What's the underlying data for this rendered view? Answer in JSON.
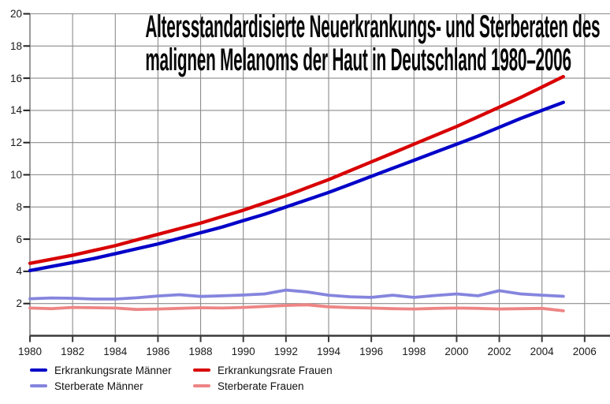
{
  "title": {
    "line1": "Altersstandardisierte Neuerkrankungs- und Sterberaten des",
    "line2": "malignen Melanoms der Haut in Deutschland 1980–2006"
  },
  "colors": {
    "grid": "#8c8c8c",
    "axis": "#3a3a3a",
    "tick": "#222222",
    "incidence_men": "#0000c8",
    "incidence_women": "#d80000",
    "mortality_men": "#8585de",
    "mortality_women": "#ee8585"
  },
  "chart_data": {
    "type": "line",
    "title": "Altersstandardisierte Neuerkrankungs- und Sterberaten des malignen Melanoms der Haut in Deutschland 1980–2006",
    "xlabel": "",
    "ylabel": "",
    "xlim": [
      1980,
      2007
    ],
    "ylim": [
      0,
      20
    ],
    "grid": true,
    "legend_position": "bottom-left",
    "xticks": [
      1980,
      1982,
      1984,
      1986,
      1988,
      1990,
      1992,
      1994,
      1996,
      1998,
      2000,
      2002,
      2004,
      2006
    ],
    "yticks": [
      2,
      4,
      6,
      8,
      10,
      12,
      14,
      16,
      18,
      20
    ],
    "x": [
      1980,
      1981,
      1982,
      1983,
      1984,
      1985,
      1986,
      1987,
      1988,
      1989,
      1990,
      1991,
      1992,
      1993,
      1994,
      1995,
      1996,
      1997,
      1998,
      1999,
      2000,
      2001,
      2002,
      2003,
      2004,
      2005
    ],
    "series": [
      {
        "name": "Erkrankungsrate Männer",
        "color": "#0000c8",
        "values": [
          4.05,
          4.3,
          4.55,
          4.8,
          5.1,
          5.4,
          5.7,
          6.05,
          6.4,
          6.75,
          7.15,
          7.55,
          8.0,
          8.45,
          8.9,
          9.4,
          9.9,
          10.4,
          10.9,
          11.4,
          11.9,
          12.4,
          12.95,
          13.5,
          14.0,
          14.5
        ]
      },
      {
        "name": "Erkrankungsrate Frauen",
        "color": "#d80000",
        "values": [
          4.5,
          4.75,
          5.0,
          5.3,
          5.6,
          5.95,
          6.3,
          6.65,
          7.0,
          7.4,
          7.8,
          8.25,
          8.7,
          9.2,
          9.7,
          10.25,
          10.8,
          11.35,
          11.9,
          12.45,
          13.0,
          13.6,
          14.2,
          14.8,
          15.45,
          16.1
        ]
      },
      {
        "name": "Sterberate Männer",
        "color": "#8585de",
        "values": [
          2.3,
          2.35,
          2.33,
          2.28,
          2.28,
          2.36,
          2.47,
          2.55,
          2.44,
          2.48,
          2.53,
          2.6,
          2.84,
          2.72,
          2.52,
          2.42,
          2.38,
          2.52,
          2.38,
          2.5,
          2.6,
          2.48,
          2.8,
          2.6,
          2.52,
          2.45
        ]
      },
      {
        "name": "Sterberate Frauen",
        "color": "#ee8585",
        "values": [
          1.72,
          1.68,
          1.76,
          1.74,
          1.72,
          1.63,
          1.66,
          1.7,
          1.74,
          1.72,
          1.76,
          1.82,
          1.88,
          1.92,
          1.8,
          1.75,
          1.72,
          1.68,
          1.66,
          1.7,
          1.72,
          1.7,
          1.66,
          1.68,
          1.7,
          1.55
        ]
      }
    ]
  }
}
